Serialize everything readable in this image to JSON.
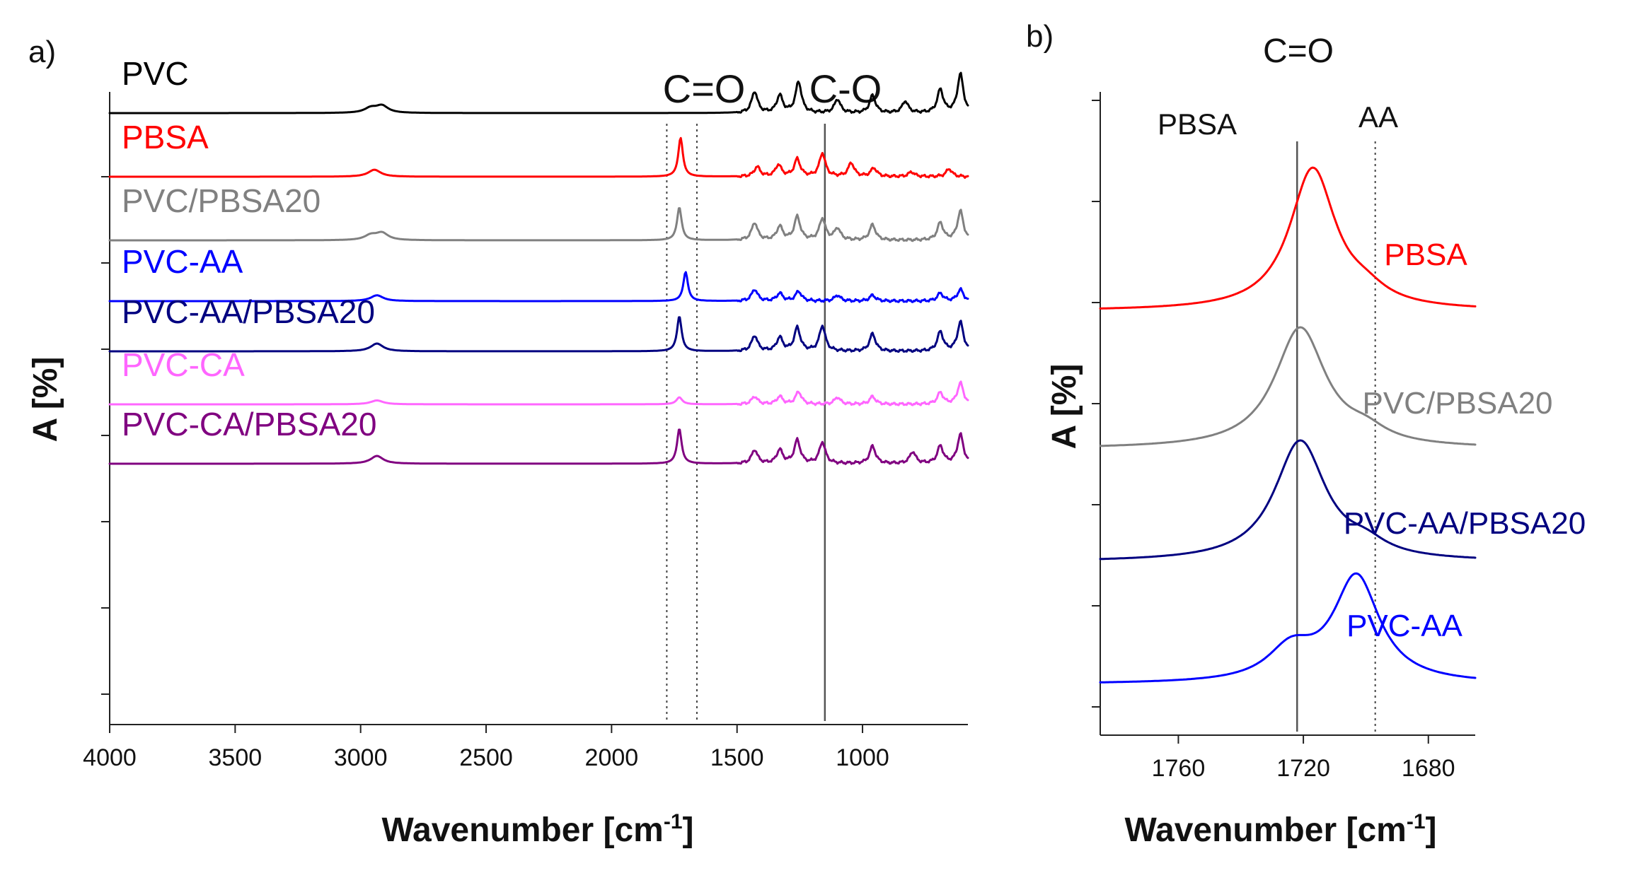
{
  "chart_data": [
    {
      "panel": "a)",
      "type": "line",
      "xlabel": "Wavenumber [cm",
      "xlabel_sup": "-1",
      "xlabel_end": "]",
      "ylabel": "A [%]",
      "xlim": [
        4000,
        580
      ],
      "x_reversed": true,
      "x_ticks": [
        4000,
        3500,
        3000,
        2500,
        2000,
        1500,
        1000
      ],
      "y_ticks_count": 7,
      "annotations": [
        {
          "label": "C=O",
          "x": 1720
        },
        {
          "label": "C-O",
          "x": 1150
        }
      ],
      "reference_lines": [
        {
          "x": 1780,
          "style": "dotted"
        },
        {
          "x": 1660,
          "style": "dotted"
        },
        {
          "x": 1150,
          "style": "solid"
        }
      ],
      "series": [
        {
          "name": "PVC",
          "color": "#000000",
          "offset": 6,
          "peaks": [
            [
              2960,
              0.12
            ],
            [
              2915,
              0.18
            ],
            [
              1430,
              0.55
            ],
            [
              1330,
              0.45
            ],
            [
              1255,
              0.8
            ],
            [
              1100,
              0.35
            ],
            [
              960,
              0.45
            ],
            [
              830,
              0.3
            ],
            [
              690,
              0.6
            ],
            [
              610,
              1.0
            ]
          ]
        },
        {
          "name": "PBSA",
          "color": "#ff0000",
          "offset": 5,
          "peaks": [
            [
              2945,
              0.18
            ],
            [
              1725,
              1.0
            ],
            [
              1420,
              0.25
            ],
            [
              1335,
              0.3
            ],
            [
              1260,
              0.45
            ],
            [
              1160,
              0.6
            ],
            [
              1045,
              0.35
            ],
            [
              955,
              0.22
            ],
            [
              805,
              0.12
            ],
            [
              655,
              0.2
            ]
          ]
        },
        {
          "name": "PVC/PBSA20",
          "color": "#808080",
          "offset": 4,
          "peaks": [
            [
              2960,
              0.12
            ],
            [
              2915,
              0.18
            ],
            [
              1730,
              0.85
            ],
            [
              1430,
              0.45
            ],
            [
              1330,
              0.35
            ],
            [
              1260,
              0.6
            ],
            [
              1160,
              0.55
            ],
            [
              1100,
              0.3
            ],
            [
              960,
              0.4
            ],
            [
              690,
              0.45
            ],
            [
              610,
              0.75
            ]
          ]
        },
        {
          "name": "PVC-AA",
          "color": "#0000ff",
          "offset": 3,
          "peaks": [
            [
              2935,
              0.15
            ],
            [
              1705,
              0.75
            ],
            [
              1430,
              0.3
            ],
            [
              1330,
              0.2
            ],
            [
              1255,
              0.25
            ],
            [
              1100,
              0.15
            ],
            [
              960,
              0.15
            ],
            [
              690,
              0.2
            ],
            [
              610,
              0.3
            ]
          ]
        },
        {
          "name": "PVC-AA/PBSA20",
          "color": "#000080",
          "offset": 2,
          "peaks": [
            [
              2935,
              0.2
            ],
            [
              1730,
              0.9
            ],
            [
              1430,
              0.4
            ],
            [
              1330,
              0.35
            ],
            [
              1260,
              0.6
            ],
            [
              1160,
              0.65
            ],
            [
              960,
              0.45
            ],
            [
              690,
              0.5
            ],
            [
              610,
              0.75
            ]
          ]
        },
        {
          "name": "PVC-CA",
          "color": "#ff66ff",
          "offset": 1,
          "peaks": [
            [
              2935,
              0.1
            ],
            [
              1730,
              0.18
            ],
            [
              1430,
              0.2
            ],
            [
              1330,
              0.2
            ],
            [
              1255,
              0.32
            ],
            [
              1100,
              0.18
            ],
            [
              960,
              0.2
            ],
            [
              690,
              0.3
            ],
            [
              610,
              0.55
            ]
          ]
        },
        {
          "name": "PVC-CA/PBSA20",
          "color": "#800080",
          "offset": 0,
          "peaks": [
            [
              2935,
              0.2
            ],
            [
              1730,
              0.9
            ],
            [
              1430,
              0.35
            ],
            [
              1330,
              0.35
            ],
            [
              1260,
              0.6
            ],
            [
              1160,
              0.55
            ],
            [
              960,
              0.45
            ],
            [
              800,
              0.3
            ],
            [
              690,
              0.45
            ],
            [
              610,
              0.75
            ]
          ]
        }
      ]
    },
    {
      "panel": "b)",
      "type": "line",
      "xlabel": "Wavenumber [cm",
      "xlabel_sup": "-1",
      "xlabel_end": "]",
      "ylabel": "A [%]",
      "xlim": [
        1785,
        1665
      ],
      "x_reversed": true,
      "x_ticks": [
        1760,
        1720,
        1680
      ],
      "y_ticks_count": 7,
      "title_annotation": "C=O",
      "reference_lines": [
        {
          "x": 1722,
          "style": "solid",
          "label": "PBSA"
        },
        {
          "x": 1697,
          "style": "dotted",
          "label": "AA"
        }
      ],
      "series": [
        {
          "name": "PBSA",
          "color": "#ff0000",
          "offset": 3,
          "center": 1717,
          "height": 1.0,
          "width": 9
        },
        {
          "name": "PVC/PBSA20",
          "color": "#808080",
          "offset": 2,
          "center": 1721,
          "height": 0.85,
          "width": 10
        },
        {
          "name": "PVC-AA/PBSA20",
          "color": "#000080",
          "offset": 1,
          "center": 1721,
          "height": 0.85,
          "width": 10
        },
        {
          "name": "PVC-AA",
          "color": "#0000ff",
          "offset": 0,
          "center": 1703,
          "height": 0.75,
          "width": 9
        }
      ]
    }
  ]
}
